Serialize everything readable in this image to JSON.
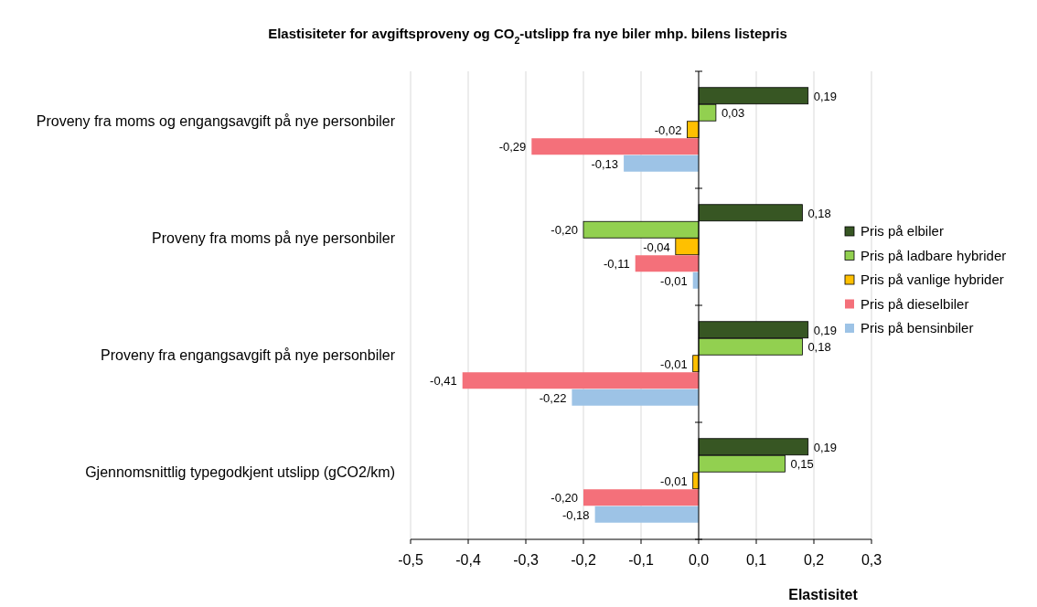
{
  "chart_data": {
    "type": "bar",
    "orientation": "horizontal",
    "title": "Elastisiteter for avgiftsproveny og CO$_{2}$-utslipp fra nye biler mhp. bilens listepris",
    "xlabel": "Elastisitet",
    "categories": [
      "Proveny fra moms og engangsavgift på nye personbiler",
      "Proveny fra moms på nye personbiler",
      "Proveny fra engangsavgift på nye personbiler",
      "Gjennomsnittlig typegodkjent utslipp (gCO2/km)"
    ],
    "series": [
      {
        "name": "Pris på elbiler",
        "color": "#375623",
        "values": [
          0.19,
          0.18,
          0.19,
          0.19
        ],
        "value_labels": [
          "0,19",
          "0,18",
          "0,19",
          "0,19"
        ]
      },
      {
        "name": "Pris på ladbare hybrider",
        "color": "#92d050",
        "values": [
          0.03,
          -0.2,
          0.18,
          0.15
        ],
        "value_labels": [
          "0,03",
          "-0,20",
          "0,18",
          "0,15"
        ]
      },
      {
        "name": "Pris på vanlige hybrider",
        "color": "#ffc000",
        "values": [
          -0.02,
          -0.04,
          -0.01,
          -0.01
        ],
        "value_labels": [
          "-0,02",
          "-0,04",
          "-0,01",
          "-0,01"
        ]
      },
      {
        "name": "Pris på dieselbiler",
        "color": "#f4707a",
        "values": [
          -0.29,
          -0.11,
          -0.41,
          -0.2
        ],
        "value_labels": [
          "-0,29",
          "-0,11",
          "-0,41",
          "-0,20"
        ]
      },
      {
        "name": "Pris på bensinbiler",
        "color": "#9dc3e6",
        "values": [
          -0.13,
          -0.01,
          -0.22,
          -0.18
        ],
        "value_labels": [
          "-0,13",
          "-0,01",
          "-0,22",
          "-0,18"
        ]
      }
    ],
    "xlim": [
      -0.5,
      0.3
    ],
    "xticks": [
      {
        "value": -0.5,
        "label": "-0,5"
      },
      {
        "value": -0.4,
        "label": "-0,4"
      },
      {
        "value": -0.3,
        "label": "-0,3"
      },
      {
        "value": -0.2,
        "label": "-0,2"
      },
      {
        "value": -0.1,
        "label": "-0,1"
      },
      {
        "value": 0,
        "label": "0,0"
      },
      {
        "value": 0.1,
        "label": "0,1"
      },
      {
        "value": 0.2,
        "label": "0,2"
      },
      {
        "value": 0.3,
        "label": "0,3"
      }
    ],
    "grid": "x",
    "legend": "right"
  }
}
